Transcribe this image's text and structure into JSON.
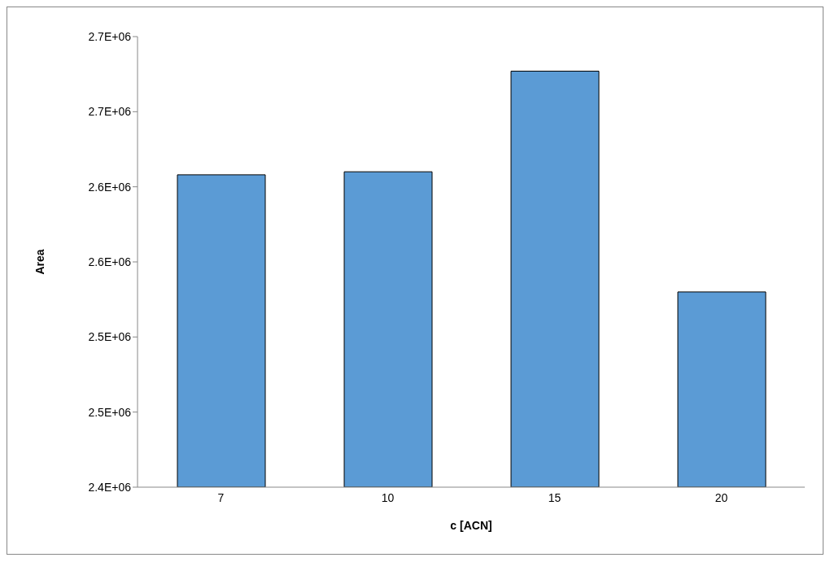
{
  "chart_data": {
    "type": "bar",
    "xlabel": "c [ACN]",
    "ylabel": "Area",
    "categories": [
      "7",
      "10",
      "15",
      "20"
    ],
    "values": [
      2608000,
      2610000,
      2677000,
      2530000
    ],
    "color": "#5b9bd5",
    "ylim": [
      2400000,
      2700000
    ],
    "yticks": [
      {
        "value": 2400000,
        "label": "2.4E+06"
      },
      {
        "value": 2450000,
        "label": "2.5E+06"
      },
      {
        "value": 2500000,
        "label": "2.5E+06"
      },
      {
        "value": 2550000,
        "label": "2.6E+06"
      },
      {
        "value": 2600000,
        "label": "2.6E+06"
      },
      {
        "value": 2650000,
        "label": "2.7E+06"
      },
      {
        "value": 2700000,
        "label": "2.7E+06"
      }
    ]
  }
}
